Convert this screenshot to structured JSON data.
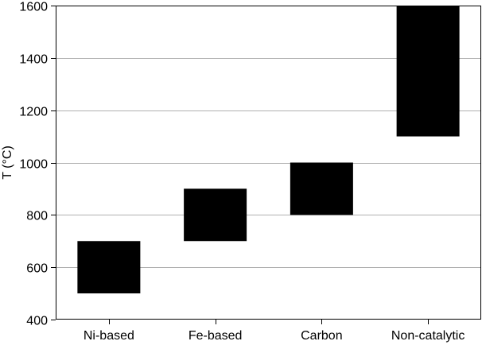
{
  "chart_data": {
    "type": "bar",
    "subtype": "floating-range",
    "title": "",
    "xlabel": "",
    "ylabel": "T (°C)",
    "ylim": [
      400,
      1600
    ],
    "yticks": [
      400,
      600,
      800,
      1000,
      1200,
      1400,
      1600
    ],
    "grid": "horizontal",
    "legend": "none",
    "categories": [
      "Ni-based",
      "Fe-based",
      "Carbon",
      "Non-catalytic"
    ],
    "ranges": [
      {
        "low": 500,
        "high": 700
      },
      {
        "low": 700,
        "high": 900
      },
      {
        "low": 800,
        "high": 1000
      },
      {
        "low": 1100,
        "high": 1600
      }
    ],
    "bar_color": "#000000",
    "grid_color": "#b0b0b0"
  }
}
